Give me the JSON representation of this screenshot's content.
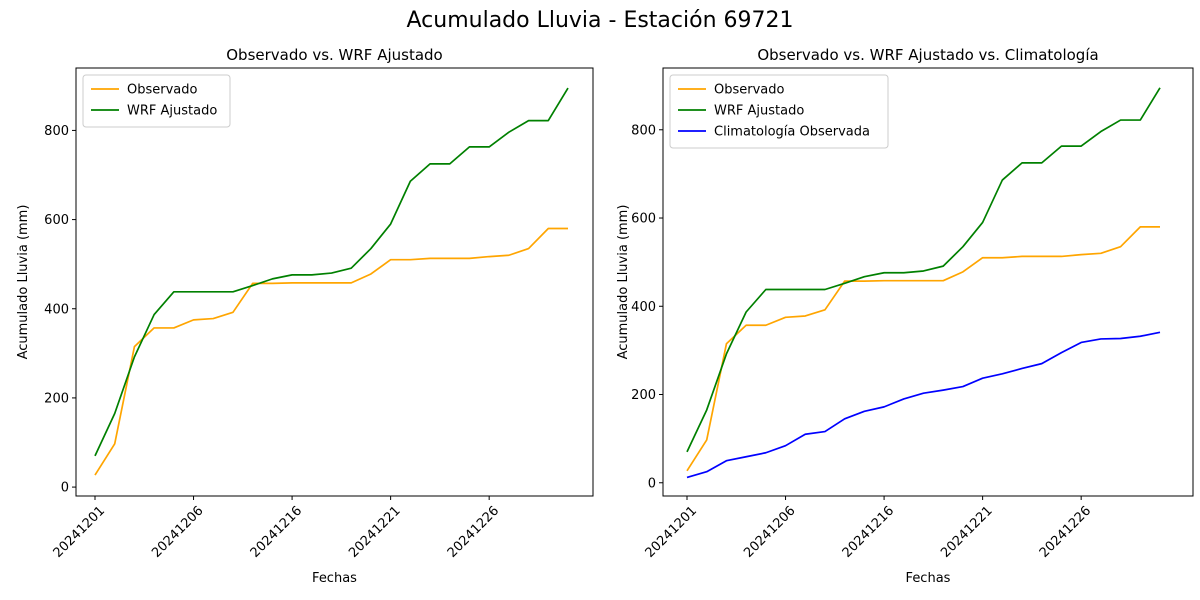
{
  "suptitle": "Acumulado Lluvia - Estación 69721",
  "colors": {
    "observado": "#ffa500",
    "wrf": "#008000",
    "clima": "#0000ff",
    "axis": "#000000"
  },
  "chart_data": [
    {
      "type": "line",
      "title": "Observado vs. WRF Ajustado",
      "xlabel": "Fechas",
      "ylabel": "Acumulado Lluvia (mm)",
      "ylim": [
        -20,
        940
      ],
      "yticks": [
        0,
        200,
        400,
        600,
        800
      ],
      "xticks": [
        "20241201",
        "20241206",
        "20241216",
        "20241221",
        "20241226"
      ],
      "x": [
        0,
        1,
        2,
        3,
        4,
        5,
        6,
        7,
        8,
        9,
        10,
        11,
        12,
        13,
        14,
        15,
        16,
        17,
        18,
        19,
        20,
        21,
        22,
        23,
        24
      ],
      "legend_position": "upper-left",
      "series": [
        {
          "name": "Observado",
          "color": "#ffa500",
          "values": [
            27,
            97,
            315,
            357,
            357,
            375,
            378,
            392,
            457,
            457,
            458,
            458,
            458,
            458,
            478,
            510,
            510,
            513,
            513,
            513,
            517,
            520,
            535,
            580,
            580
          ]
        },
        {
          "name": "WRF Ajustado",
          "color": "#008000",
          "values": [
            70,
            165,
            292,
            387,
            438,
            438,
            438,
            438,
            452,
            467,
            476,
            476,
            480,
            491,
            535,
            590,
            686,
            725,
            725,
            763,
            763,
            796,
            822,
            822,
            895
          ]
        }
      ]
    },
    {
      "type": "line",
      "title": "Observado vs. WRF Ajustado vs. Climatología",
      "xlabel": "Fechas",
      "ylabel": "Acumulado Lluvia (mm)",
      "ylim": [
        -30,
        940
      ],
      "yticks": [
        0,
        200,
        400,
        600,
        800
      ],
      "xticks": [
        "20241201",
        "20241206",
        "20241216",
        "20241221",
        "20241226"
      ],
      "x": [
        0,
        1,
        2,
        3,
        4,
        5,
        6,
        7,
        8,
        9,
        10,
        11,
        12,
        13,
        14,
        15,
        16,
        17,
        18,
        19,
        20,
        21,
        22,
        23,
        24
      ],
      "legend_position": "upper-left",
      "series": [
        {
          "name": "Observado",
          "color": "#ffa500",
          "values": [
            27,
            97,
            315,
            357,
            357,
            375,
            378,
            392,
            457,
            457,
            458,
            458,
            458,
            458,
            478,
            510,
            510,
            513,
            513,
            513,
            517,
            520,
            535,
            580,
            580
          ]
        },
        {
          "name": "WRF Ajustado",
          "color": "#008000",
          "values": [
            70,
            165,
            292,
            387,
            438,
            438,
            438,
            438,
            452,
            467,
            476,
            476,
            480,
            491,
            535,
            590,
            686,
            725,
            725,
            763,
            763,
            796,
            822,
            822,
            895
          ]
        },
        {
          "name": "Climatología Observada",
          "color": "#0000ff",
          "values": [
            12,
            25,
            50,
            59,
            68,
            84,
            110,
            116,
            145,
            162,
            172,
            190,
            203,
            210,
            218,
            237,
            247,
            259,
            270,
            295,
            318,
            326,
            327,
            332,
            341
          ]
        }
      ]
    }
  ]
}
